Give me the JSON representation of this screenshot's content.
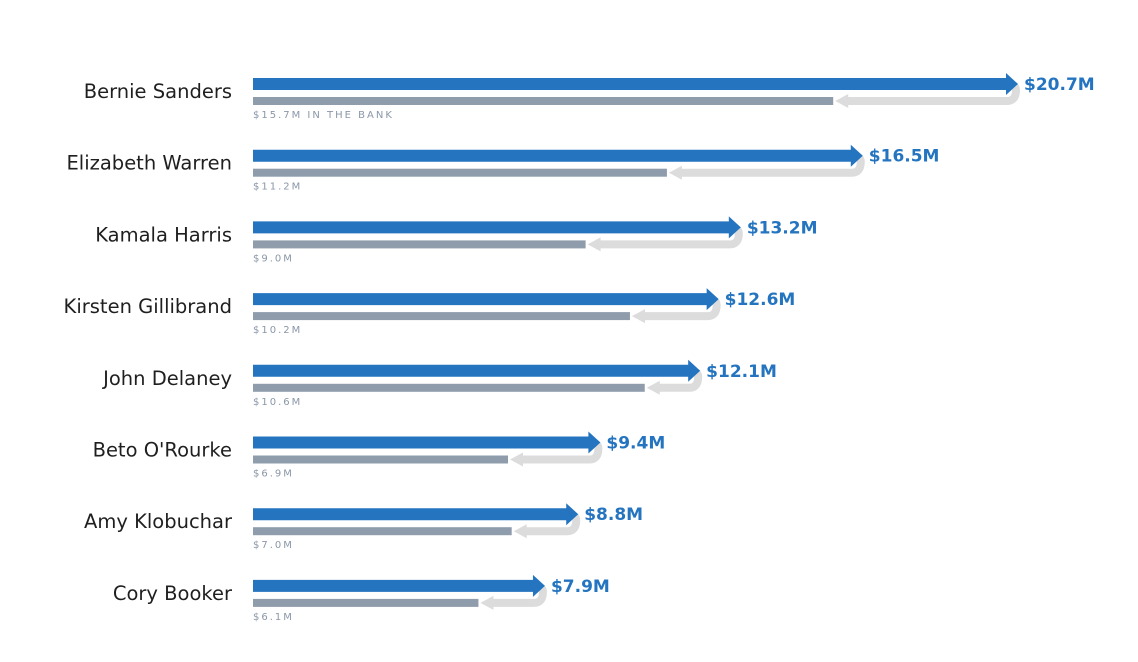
{
  "colors": {
    "raised": "#2474c0",
    "bank": "#8f9cab",
    "spent": "#dcdcdc",
    "name_text": "#1f1f1f",
    "bank_text": "#8a97a8"
  },
  "chart_data": {
    "type": "bar",
    "orientation": "horizontal",
    "categories": [
      "Bernie Sanders",
      "Elizabeth Warren",
      "Kamala Harris",
      "Kirsten Gillibrand",
      "John Delaney",
      "Beto O'Rourke",
      "Amy Klobuchar",
      "Cory Booker"
    ],
    "series": [
      {
        "values": [
          20.7,
          16.5,
          13.2,
          12.6,
          12.1,
          9.4,
          8.8,
          7.9
        ]
      },
      {
        "values": [
          15.7,
          11.2,
          9.0,
          10.2,
          10.6,
          6.9,
          7.0,
          6.1
        ]
      }
    ],
    "raised_labels": [
      "$20.7M",
      "$16.5M",
      "$13.2M",
      "$12.6M",
      "$12.1M",
      "$9.4M",
      "$8.8M",
      "$7.9M"
    ],
    "bank_labels": [
      "$15.7M IN THE BANK",
      "$11.2M",
      "$9.0M",
      "$10.2M",
      "$10.6M",
      "$6.9M",
      "$7.0M",
      "$6.1M"
    ],
    "xlim": [
      0,
      20.7
    ],
    "grid": false,
    "legend": "none"
  }
}
